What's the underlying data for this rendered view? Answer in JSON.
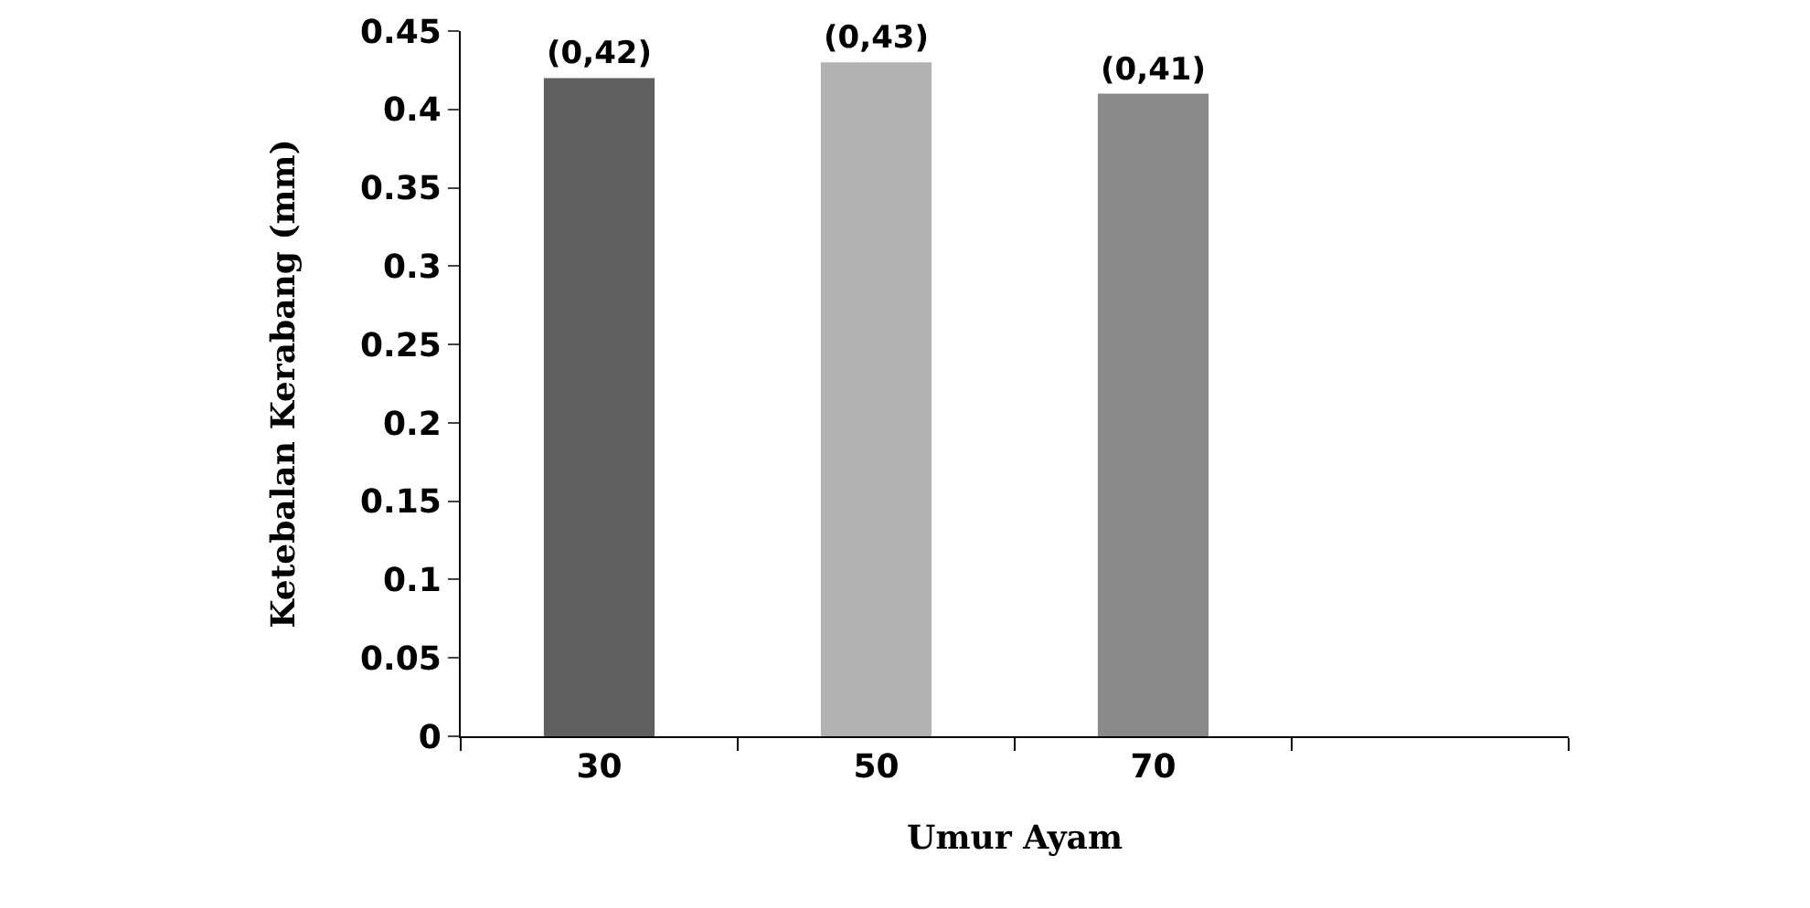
{
  "chart_data": {
    "type": "bar",
    "xlabel": "Umur Ayam",
    "ylabel": "Ketebalan Kerabang (mm)",
    "categories": [
      "30",
      "50",
      "70",
      null
    ],
    "values": [
      0.42,
      0.43,
      0.41,
      null
    ],
    "value_labels": [
      "(0,42)",
      "(0,43)",
      "(0,41)",
      null
    ],
    "colors": [
      "#5f5f5f",
      "#b2b2b2",
      "#898989",
      "#898989"
    ],
    "ylim": [
      0,
      0.45
    ],
    "yticks": [
      0,
      0.05,
      0.1,
      0.15,
      0.2,
      0.25,
      0.3,
      0.35,
      0.4,
      0.45
    ],
    "grid": false
  }
}
